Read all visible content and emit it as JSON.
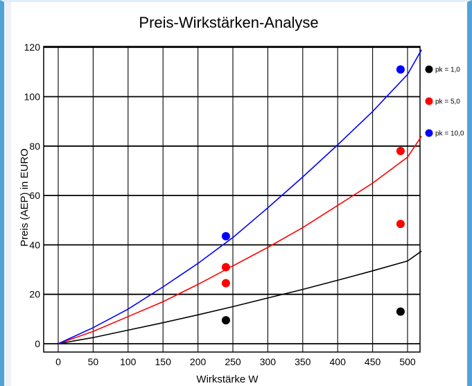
{
  "chart_data": {
    "type": "scatter",
    "title": "Preis-Wirkstärken-Analyse",
    "xlabel": "Wirkstärke W",
    "ylabel": "Preis (AEP) in EURO",
    "xlim": [
      -10,
      520
    ],
    "ylim": [
      -5,
      120
    ],
    "x_ticks": [
      0,
      50,
      100,
      150,
      200,
      250,
      300,
      350,
      400,
      450,
      500
    ],
    "y_ticks": [
      0,
      20,
      40,
      60,
      80,
      100,
      120
    ],
    "grid": true,
    "legend_position": "right",
    "curves": [
      {
        "legend": "pk = 1,0",
        "color": "#000000",
        "x": [
          0,
          50,
          100,
          150,
          200,
          250,
          300,
          350,
          400,
          450,
          500,
          520
        ],
        "y": [
          0,
          2.5,
          5.5,
          8.5,
          11.7,
          15,
          18.5,
          22,
          25.7,
          29.5,
          33.5,
          37.5
        ]
      },
      {
        "legend": "pk = 5,0",
        "color": "#ff0000",
        "x": [
          0,
          50,
          100,
          150,
          200,
          250,
          300,
          350,
          400,
          450,
          500,
          520
        ],
        "y": [
          0,
          5,
          11,
          17,
          24,
          31.5,
          39,
          47,
          56,
          65,
          75.5,
          84
        ]
      },
      {
        "legend": "pk = 10,0",
        "color": "#0000ff",
        "x": [
          0,
          50,
          100,
          150,
          200,
          250,
          300,
          350,
          400,
          450,
          500,
          520
        ],
        "y": [
          0,
          6.5,
          14,
          23,
          32.5,
          43,
          55,
          67.5,
          80.5,
          94,
          109,
          119
        ]
      }
    ],
    "points": [
      {
        "color": "#000000",
        "x": 240,
        "y": 9.5
      },
      {
        "color": "#000000",
        "x": 490,
        "y": 13
      },
      {
        "color": "#ff0000",
        "x": 240,
        "y": 24.5
      },
      {
        "color": "#ff0000",
        "x": 240,
        "y": 31
      },
      {
        "color": "#ff0000",
        "x": 490,
        "y": 48.5
      },
      {
        "color": "#ff0000",
        "x": 490,
        "y": 78
      },
      {
        "color": "#0000ff",
        "x": 240,
        "y": 43.5
      },
      {
        "color": "#0000ff",
        "x": 490,
        "y": 111
      }
    ],
    "legend": [
      {
        "label": "pk = 1,0",
        "color": "#000000"
      },
      {
        "label": "pk = 5,0",
        "color": "#ff0000"
      },
      {
        "label": "pk = 10,0",
        "color": "#0000ff"
      }
    ]
  }
}
